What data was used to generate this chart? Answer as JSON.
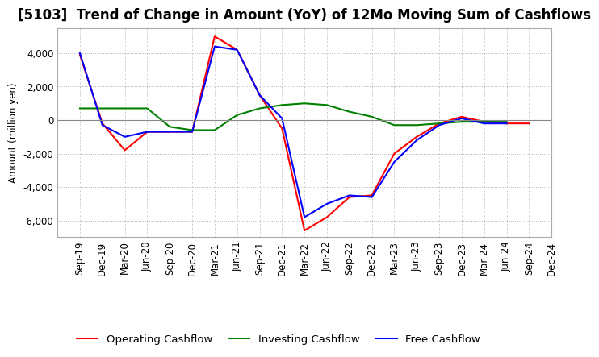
{
  "title": "[5103]  Trend of Change in Amount (YoY) of 12Mo Moving Sum of Cashflows",
  "ylabel": "Amount (million yen)",
  "ylim": [
    -7000,
    5500
  ],
  "yticks": [
    -6000,
    -4000,
    -2000,
    0,
    2000,
    4000
  ],
  "x_labels": [
    "Sep-19",
    "Dec-19",
    "Mar-20",
    "Jun-20",
    "Sep-20",
    "Dec-20",
    "Mar-21",
    "Jun-21",
    "Sep-21",
    "Dec-21",
    "Mar-22",
    "Jun-22",
    "Sep-22",
    "Dec-22",
    "Mar-23",
    "Jun-23",
    "Sep-23",
    "Dec-23",
    "Mar-24",
    "Jun-24",
    "Sep-24",
    "Dec-24"
  ],
  "operating": [
    3900,
    -200,
    -1800,
    -700,
    -700,
    -700,
    5000,
    4200,
    1500,
    -500,
    -6600,
    -5800,
    -4600,
    -4500,
    -2000,
    -1000,
    -200,
    200,
    -100,
    -200,
    -200,
    null
  ],
  "investing": [
    700,
    700,
    700,
    700,
    -400,
    -600,
    -600,
    300,
    700,
    900,
    1000,
    900,
    500,
    200,
    -300,
    -300,
    -200,
    -100,
    -100,
    -100,
    null,
    null
  ],
  "free": [
    4000,
    -300,
    -1000,
    -700,
    -700,
    -700,
    4400,
    4200,
    1500,
    100,
    -5800,
    -5000,
    -4500,
    -4600,
    -2500,
    -1200,
    -300,
    100,
    -200,
    -200,
    null,
    null
  ],
  "operating_color": "#ff0000",
  "investing_color": "#008000",
  "free_color": "#0000ff",
  "bg_color": "#ffffff",
  "grid_color": "#b0b0b0",
  "title_fontsize": 12,
  "axis_fontsize": 8.5,
  "legend_fontsize": 9.5
}
